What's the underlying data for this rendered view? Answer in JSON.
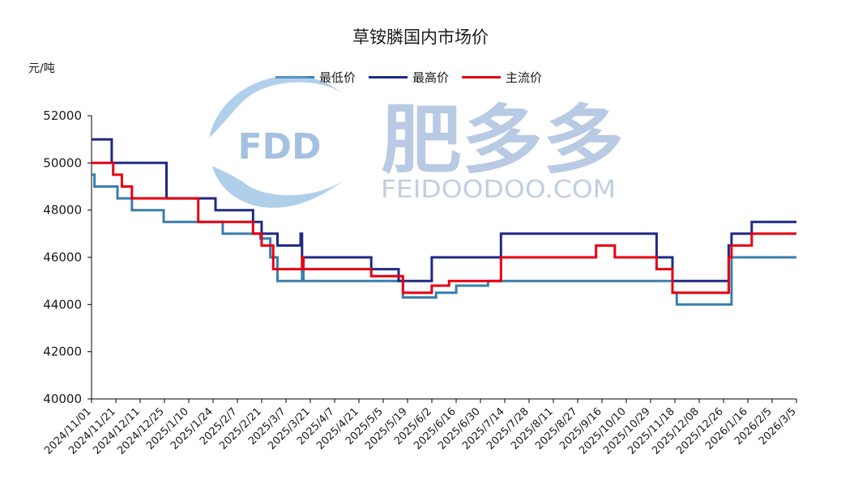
{
  "chart_data": {
    "type": "line",
    "title": "草铵膦国内市场价",
    "unit_label": "元/吨",
    "watermark": {
      "logo_text": "FDD",
      "brand_cn": "肥多多",
      "brand_en": "FEIDOODOO.COM"
    },
    "xlabel": "",
    "ylabel": "",
    "ylim": [
      40000,
      52000
    ],
    "yticks": [
      40000,
      42000,
      44000,
      46000,
      48000,
      50000,
      52000
    ],
    "ytick_labels": [
      "40000",
      "42000",
      "44000",
      "46000",
      "48000",
      "50000",
      "52000"
    ],
    "xlim": [
      "2024-11-01",
      "2026-03-05"
    ],
    "xtick_labels": [
      "2024/11/01",
      "2024/11/21",
      "2024/12/11",
      "2024/12/25",
      "2025/1/10",
      "2025/1/24",
      "2025/2/7",
      "2025/2/21",
      "2025/3/7",
      "2025/3/21",
      "2025/4/7",
      "2025/4/21",
      "2025/5/5",
      "2025/5/19",
      "2025/6/2",
      "2025/6/16",
      "2025/6/30",
      "2025/7/14",
      "2025/7/28",
      "2025/8/11",
      "2025/8/27",
      "2025/9/16",
      "2025/10/10",
      "2025/10/29",
      "2025/11/18",
      "2025/12/08",
      "2025/12/26",
      "2026/1/16",
      "2026/2/5",
      "2026/3/5"
    ],
    "legend_position": "top",
    "grid": false,
    "series": [
      {
        "name": "最低价",
        "color": "#3a7fac",
        "points": [
          [
            "2024-11-01",
            49500
          ],
          [
            "2024-11-03",
            49000
          ],
          [
            "2024-11-19",
            48500
          ],
          [
            "2024-11-29",
            48000
          ],
          [
            "2024-12-21",
            47500
          ],
          [
            "2025-01-31",
            47000
          ],
          [
            "2025-02-26",
            46800
          ],
          [
            "2025-03-05",
            46000
          ],
          [
            "2025-03-10",
            45000
          ],
          [
            "2025-03-27",
            45500
          ],
          [
            "2025-03-28",
            45000
          ],
          [
            "2025-06-05",
            44300
          ],
          [
            "2025-06-28",
            44500
          ],
          [
            "2025-07-12",
            44800
          ],
          [
            "2025-08-03",
            45000
          ],
          [
            "2025-12-09",
            44500
          ],
          [
            "2025-12-12",
            44000
          ],
          [
            "2026-01-19",
            46000
          ],
          [
            "2026-03-05",
            46000
          ]
        ]
      },
      {
        "name": "最高价",
        "color": "#1f2a84",
        "points": [
          [
            "2024-11-01",
            51000
          ],
          [
            "2024-11-15",
            50000
          ],
          [
            "2024-12-23",
            48500
          ],
          [
            "2025-01-26",
            48000
          ],
          [
            "2025-02-21",
            47500
          ],
          [
            "2025-02-27",
            47000
          ],
          [
            "2025-03-10",
            46500
          ],
          [
            "2025-03-26",
            47000
          ],
          [
            "2025-03-27",
            46000
          ],
          [
            "2025-05-14",
            45500
          ],
          [
            "2025-06-02",
            45000
          ],
          [
            "2025-06-25",
            46000
          ],
          [
            "2025-08-12",
            47000
          ],
          [
            "2025-11-28",
            46000
          ],
          [
            "2025-12-09",
            45000
          ],
          [
            "2026-01-17",
            46500
          ],
          [
            "2026-01-19",
            47000
          ],
          [
            "2026-02-02",
            47500
          ],
          [
            "2026-03-05",
            47500
          ]
        ]
      },
      {
        "name": "主流价",
        "color": "#e60012",
        "points": [
          [
            "2024-11-01",
            50000
          ],
          [
            "2024-11-16",
            49500
          ],
          [
            "2024-11-22",
            49000
          ],
          [
            "2024-11-29",
            48500
          ],
          [
            "2025-01-14",
            47500
          ],
          [
            "2025-02-21",
            47000
          ],
          [
            "2025-02-27",
            46500
          ],
          [
            "2025-03-07",
            45500
          ],
          [
            "2025-03-27",
            46000
          ],
          [
            "2025-03-28",
            45500
          ],
          [
            "2025-05-14",
            45200
          ],
          [
            "2025-06-05",
            44500
          ],
          [
            "2025-06-25",
            44800
          ],
          [
            "2025-07-07",
            45000
          ],
          [
            "2025-08-12",
            46000
          ],
          [
            "2025-10-17",
            46500
          ],
          [
            "2025-10-30",
            46000
          ],
          [
            "2025-11-28",
            45500
          ],
          [
            "2025-12-09",
            44500
          ],
          [
            "2026-01-17",
            46000
          ],
          [
            "2026-01-19",
            46500
          ],
          [
            "2026-02-02",
            47000
          ],
          [
            "2026-03-05",
            47000
          ]
        ]
      }
    ]
  }
}
